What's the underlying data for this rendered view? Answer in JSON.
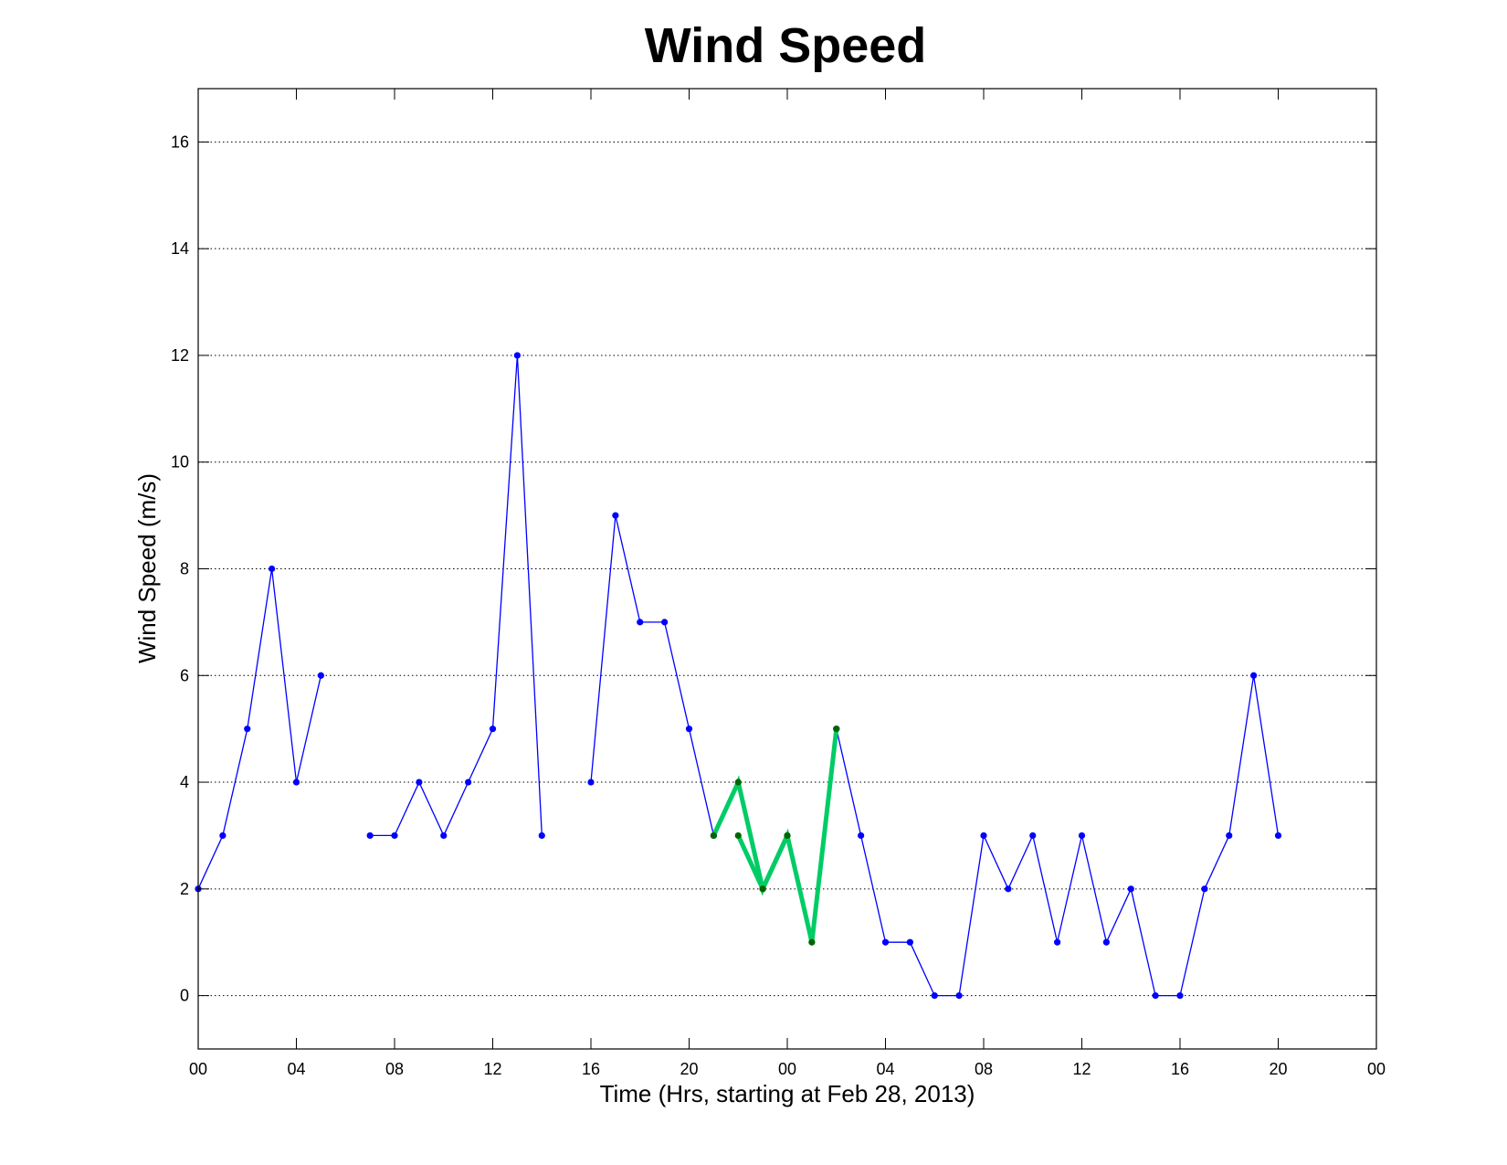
{
  "chart_data": {
    "type": "line",
    "title": "Wind Speed",
    "xlabel": "Time (Hrs, starting at Feb 28, 2013)",
    "ylabel": "Wind Speed (m/s)",
    "xlim": [
      0,
      48
    ],
    "ylim": [
      -1,
      17
    ],
    "x_ticks": [
      {
        "value": 0,
        "label": "00"
      },
      {
        "value": 4,
        "label": "04"
      },
      {
        "value": 8,
        "label": "08"
      },
      {
        "value": 12,
        "label": "12"
      },
      {
        "value": 16,
        "label": "16"
      },
      {
        "value": 20,
        "label": "20"
      },
      {
        "value": 24,
        "label": "00"
      },
      {
        "value": 28,
        "label": "04"
      },
      {
        "value": 32,
        "label": "08"
      },
      {
        "value": 36,
        "label": "12"
      },
      {
        "value": 40,
        "label": "16"
      },
      {
        "value": 44,
        "label": "20"
      },
      {
        "value": 48,
        "label": "00"
      }
    ],
    "y_ticks": [
      0,
      2,
      4,
      6,
      8,
      10,
      12,
      14,
      16
    ],
    "grid": "y-dotted",
    "colors": {
      "series_blue": "#0000ff",
      "series_green": "#00cc66",
      "marker_green": "#006600"
    },
    "series": [
      {
        "color": "#0000ff",
        "segments": [
          [
            [
              0,
              2
            ],
            [
              1,
              3
            ],
            [
              2,
              5
            ],
            [
              3,
              8
            ],
            [
              4,
              4
            ],
            [
              5,
              6
            ]
          ],
          [
            [
              7,
              3
            ],
            [
              8,
              3
            ],
            [
              9,
              4
            ],
            [
              10,
              3
            ],
            [
              11,
              4
            ],
            [
              12,
              5
            ],
            [
              13,
              12
            ],
            [
              14,
              3
            ]
          ],
          [
            [
              16,
              4
            ],
            [
              17,
              9
            ],
            [
              18,
              7
            ],
            [
              19,
              7
            ],
            [
              20,
              5
            ],
            [
              21,
              3
            ]
          ],
          [
            [
              26,
              5
            ],
            [
              27,
              3
            ],
            [
              28,
              1
            ],
            [
              29,
              1
            ],
            [
              30,
              0
            ],
            [
              31,
              0
            ],
            [
              32,
              3
            ],
            [
              33,
              2
            ],
            [
              34,
              3
            ],
            [
              35,
              1
            ],
            [
              36,
              3
            ],
            [
              37,
              1
            ],
            [
              38,
              2
            ],
            [
              39,
              0
            ],
            [
              40,
              0
            ],
            [
              41,
              2
            ],
            [
              42,
              3
            ],
            [
              43,
              6
            ],
            [
              44,
              3
            ]
          ]
        ]
      },
      {
        "color": "#00cc66",
        "segments": [
          [
            [
              21,
              3
            ],
            [
              22,
              4
            ],
            [
              23,
              2
            ],
            [
              24,
              3
            ]
          ],
          [
            [
              22,
              3
            ],
            [
              23,
              2
            ],
            [
              24,
              3
            ],
            [
              25,
              1
            ],
            [
              26,
              5
            ]
          ]
        ]
      }
    ]
  }
}
